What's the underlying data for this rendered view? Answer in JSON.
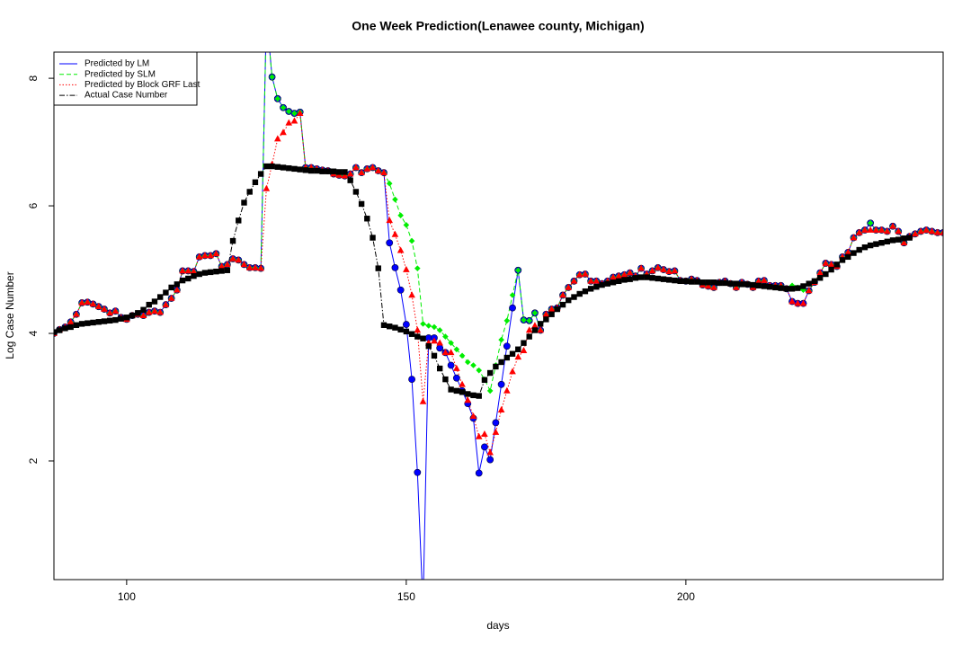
{
  "chart_data": {
    "type": "line",
    "title": "One Week Prediction(Lenawee county, Michigan)",
    "x_label": "days",
    "y_label": "Log Case Number",
    "xlim": [
      87,
      246
    ],
    "ylim": [
      0.14,
      8.41
    ],
    "xticks": [
      100,
      150,
      200
    ],
    "yticks": [
      2,
      4,
      6,
      8
    ],
    "grid": false,
    "legend_position": "top-left",
    "x": [
      87,
      88,
      89,
      90,
      91,
      92,
      93,
      94,
      95,
      96,
      97,
      98,
      99,
      100,
      101,
      102,
      103,
      104,
      105,
      106,
      107,
      108,
      109,
      110,
      111,
      112,
      113,
      114,
      115,
      116,
      117,
      118,
      119,
      120,
      121,
      122,
      123,
      124,
      125,
      126,
      127,
      128,
      129,
      130,
      131,
      132,
      133,
      134,
      135,
      136,
      137,
      138,
      139,
      140,
      141,
      142,
      143,
      144,
      145,
      146,
      147,
      148,
      149,
      150,
      151,
      152,
      153,
      154,
      155,
      156,
      157,
      158,
      159,
      160,
      161,
      162,
      163,
      164,
      165,
      166,
      167,
      168,
      169,
      170,
      171,
      172,
      173,
      174,
      175,
      176,
      177,
      178,
      179,
      180,
      181,
      182,
      183,
      184,
      185,
      186,
      187,
      188,
      189,
      190,
      191,
      192,
      193,
      194,
      195,
      196,
      197,
      198,
      199,
      200,
      201,
      202,
      203,
      204,
      205,
      206,
      207,
      208,
      209,
      210,
      211,
      212,
      213,
      214,
      215,
      216,
      217,
      218,
      219,
      220,
      221,
      222,
      223,
      224,
      225,
      226,
      227,
      228,
      229,
      230,
      231,
      232,
      233,
      234,
      235,
      236,
      237,
      238,
      239,
      240,
      241,
      242,
      243,
      244,
      245,
      246
    ],
    "series": [
      {
        "name": "Predicted by LM",
        "color": "#0000ff",
        "dash": "solid",
        "marker": "circle",
        "values": [
          4.0,
          4.06,
          4.1,
          4.18,
          4.3,
          4.48,
          4.49,
          4.46,
          4.42,
          4.38,
          4.32,
          4.35,
          4.25,
          4.22,
          4.28,
          4.3,
          4.28,
          4.33,
          4.35,
          4.33,
          4.45,
          4.55,
          4.68,
          4.98,
          4.98,
          4.97,
          5.2,
          5.22,
          5.22,
          5.25,
          5.05,
          5.08,
          5.17,
          5.15,
          5.08,
          5.03,
          5.03,
          5.02,
          9.0,
          8.02,
          7.68,
          7.54,
          7.48,
          7.45,
          7.47,
          6.6,
          6.6,
          6.58,
          6.56,
          6.55,
          6.5,
          6.48,
          6.47,
          6.5,
          6.6,
          6.52,
          6.58,
          6.6,
          6.55,
          6.52,
          5.42,
          5.03,
          4.68,
          4.14,
          3.28,
          1.82,
          -0.3,
          3.93,
          3.93,
          3.77,
          3.7,
          3.5,
          3.3,
          3.1,
          2.9,
          2.67,
          1.81,
          2.22,
          2.02,
          2.6,
          3.2,
          3.8,
          4.4,
          4.99,
          4.21,
          4.2,
          4.32,
          4.05,
          4.3,
          4.38,
          4.4,
          4.6,
          4.72,
          4.82,
          4.92,
          4.93,
          4.82,
          4.82,
          4.78,
          4.82,
          4.88,
          4.9,
          4.92,
          4.95,
          4.9,
          5.02,
          4.93,
          4.98,
          5.03,
          5.0,
          4.97,
          4.98,
          4.83,
          4.82,
          4.85,
          4.83,
          4.76,
          4.74,
          4.72,
          4.8,
          4.82,
          4.78,
          4.72,
          4.8,
          4.77,
          4.72,
          4.82,
          4.83,
          4.75,
          4.75,
          4.75,
          4.7,
          4.5,
          4.47,
          4.47,
          4.67,
          4.8,
          4.95,
          5.1,
          5.08,
          5.05,
          5.2,
          5.27,
          5.5,
          5.58,
          5.62,
          5.73,
          5.62,
          5.62,
          5.6,
          5.68,
          5.6,
          5.42,
          5.52,
          5.56,
          5.6,
          5.62,
          5.6,
          5.58,
          5.58
        ]
      },
      {
        "name": "Predicted by SLM",
        "color": "#00ee00",
        "dash": "dashed",
        "marker": "diamond",
        "values": [
          4.0,
          4.06,
          4.1,
          4.18,
          4.3,
          4.48,
          4.49,
          4.46,
          4.42,
          4.38,
          4.32,
          4.35,
          4.25,
          4.22,
          4.28,
          4.3,
          4.28,
          4.33,
          4.35,
          4.33,
          4.45,
          4.55,
          4.68,
          4.98,
          4.98,
          4.97,
          5.2,
          5.22,
          5.22,
          5.25,
          5.05,
          5.08,
          5.17,
          5.15,
          5.08,
          5.03,
          5.03,
          5.02,
          9.0,
          8.02,
          7.68,
          7.54,
          7.48,
          7.45,
          7.47,
          6.6,
          6.6,
          6.58,
          6.56,
          6.55,
          6.5,
          6.48,
          6.47,
          6.5,
          6.6,
          6.52,
          6.58,
          6.6,
          6.55,
          6.52,
          6.35,
          6.1,
          5.85,
          5.7,
          5.45,
          5.02,
          4.15,
          4.12,
          4.1,
          4.05,
          3.95,
          3.85,
          3.75,
          3.65,
          3.55,
          3.5,
          3.42,
          3.28,
          3.1,
          3.5,
          3.9,
          4.2,
          4.6,
          4.99,
          4.21,
          4.2,
          4.32,
          4.05,
          4.3,
          4.38,
          4.4,
          4.6,
          4.72,
          4.82,
          4.92,
          4.93,
          4.82,
          4.82,
          4.78,
          4.82,
          4.88,
          4.9,
          4.92,
          4.95,
          4.9,
          5.02,
          4.93,
          4.98,
          5.03,
          5.0,
          4.97,
          4.98,
          4.83,
          4.82,
          4.85,
          4.83,
          4.76,
          4.74,
          4.72,
          4.8,
          4.82,
          4.78,
          4.72,
          4.8,
          4.77,
          4.72,
          4.82,
          4.83,
          4.75,
          4.75,
          4.75,
          4.7,
          4.75,
          4.72,
          4.68,
          4.67,
          4.8,
          4.95,
          5.1,
          5.08,
          5.05,
          5.2,
          5.27,
          5.5,
          5.58,
          5.62,
          5.73,
          5.62,
          5.62,
          5.6,
          5.68,
          5.6,
          5.42,
          5.52,
          5.56,
          5.6,
          5.62,
          5.6,
          5.58,
          5.58
        ]
      },
      {
        "name": "Predicted by Block GRF Last",
        "color": "#ff0000",
        "dash": "dotted",
        "marker": "triangle",
        "values": [
          4.0,
          4.06,
          4.1,
          4.18,
          4.3,
          4.48,
          4.49,
          4.46,
          4.42,
          4.38,
          4.32,
          4.35,
          4.25,
          4.22,
          4.28,
          4.3,
          4.28,
          4.33,
          4.35,
          4.33,
          4.45,
          4.55,
          4.68,
          4.98,
          4.98,
          4.97,
          5.2,
          5.22,
          5.22,
          5.25,
          5.05,
          5.08,
          5.17,
          5.15,
          5.08,
          5.03,
          5.03,
          5.02,
          6.27,
          6.65,
          7.05,
          7.15,
          7.3,
          7.33,
          7.45,
          6.6,
          6.6,
          6.58,
          6.56,
          6.55,
          6.5,
          6.48,
          6.47,
          6.5,
          6.6,
          6.52,
          6.58,
          6.6,
          6.55,
          6.52,
          5.77,
          5.55,
          5.3,
          5.0,
          4.6,
          4.05,
          2.93,
          3.85,
          3.88,
          3.85,
          3.7,
          3.7,
          3.45,
          3.2,
          2.95,
          2.7,
          2.38,
          2.42,
          2.13,
          2.45,
          2.8,
          3.1,
          3.4,
          3.63,
          3.73,
          4.05,
          4.12,
          4.05,
          4.3,
          4.38,
          4.4,
          4.6,
          4.72,
          4.82,
          4.92,
          4.93,
          4.82,
          4.82,
          4.78,
          4.82,
          4.88,
          4.9,
          4.92,
          4.95,
          4.9,
          5.02,
          4.93,
          4.98,
          5.03,
          5.0,
          4.97,
          4.98,
          4.83,
          4.82,
          4.85,
          4.83,
          4.76,
          4.74,
          4.72,
          4.8,
          4.82,
          4.78,
          4.72,
          4.8,
          4.77,
          4.72,
          4.82,
          4.83,
          4.75,
          4.75,
          4.75,
          4.7,
          4.5,
          4.47,
          4.47,
          4.67,
          4.8,
          4.95,
          5.1,
          5.08,
          5.05,
          5.2,
          5.27,
          5.5,
          5.58,
          5.62,
          5.62,
          5.62,
          5.62,
          5.6,
          5.68,
          5.6,
          5.42,
          5.52,
          5.56,
          5.6,
          5.62,
          5.6,
          5.58,
          5.58
        ]
      },
      {
        "name": "Actual Case Number",
        "color": "#000000",
        "dash": "dashdot",
        "marker": "square",
        "values": [
          4.02,
          4.05,
          4.08,
          4.1,
          4.13,
          4.15,
          4.16,
          4.17,
          4.18,
          4.19,
          4.2,
          4.21,
          4.23,
          4.25,
          4.28,
          4.32,
          4.37,
          4.45,
          4.5,
          4.57,
          4.64,
          4.72,
          4.77,
          4.83,
          4.86,
          4.9,
          4.93,
          4.95,
          4.96,
          4.97,
          4.98,
          4.99,
          5.45,
          5.77,
          6.05,
          6.22,
          6.37,
          6.5,
          6.62,
          6.62,
          6.61,
          6.6,
          6.59,
          6.58,
          6.57,
          6.56,
          6.55,
          6.55,
          6.54,
          6.54,
          6.54,
          6.53,
          6.53,
          6.4,
          6.22,
          6.03,
          5.8,
          5.5,
          5.02,
          4.13,
          4.11,
          4.09,
          4.06,
          4.03,
          3.99,
          3.95,
          3.92,
          3.8,
          3.65,
          3.45,
          3.28,
          3.12,
          3.1,
          3.08,
          3.05,
          3.03,
          3.02,
          3.27,
          3.38,
          3.48,
          3.55,
          3.62,
          3.68,
          3.75,
          3.85,
          3.95,
          4.05,
          4.15,
          4.22,
          4.3,
          4.38,
          4.45,
          4.52,
          4.57,
          4.62,
          4.66,
          4.7,
          4.73,
          4.76,
          4.78,
          4.8,
          4.82,
          4.84,
          4.85,
          4.87,
          4.88,
          4.88,
          4.87,
          4.86,
          4.85,
          4.84,
          4.83,
          4.82,
          4.82,
          4.81,
          4.81,
          4.8,
          4.8,
          4.8,
          4.79,
          4.79,
          4.78,
          4.78,
          4.77,
          4.77,
          4.76,
          4.75,
          4.74,
          4.73,
          4.72,
          4.71,
          4.7,
          4.7,
          4.71,
          4.74,
          4.78,
          4.82,
          4.87,
          4.93,
          5.0,
          5.08,
          5.15,
          5.2,
          5.26,
          5.31,
          5.35,
          5.38,
          5.4,
          5.42,
          5.44,
          5.46,
          5.47,
          5.49,
          5.5,
          null,
          null,
          null,
          null,
          null,
          null
        ]
      }
    ]
  }
}
